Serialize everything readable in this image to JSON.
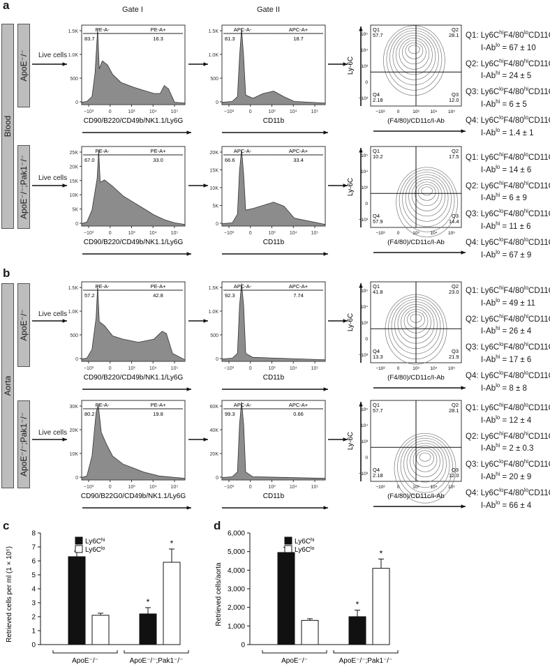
{
  "panels": {
    "a": "a",
    "b": "b",
    "c": "c",
    "d": "d"
  },
  "gates": {
    "gate1": "Gate I",
    "gate2": "Gate II"
  },
  "tissues": {
    "blood": "Blood",
    "aorta": "Aorta"
  },
  "strain_apoe": "ApoE⁻/⁻",
  "strain_dko": "ApoE⁻/⁻;Pak1⁻/⁻",
  "live": "Live cells",
  "axis": {
    "cd90": "CD90/B220/CD49b/NK1.1/Ly6G",
    "cd90_alt": "CD90/B22G0/CD49b/NK1.1/Ly6G",
    "cd11b": "CD11b",
    "f480": "(F4/80)/CD11c/I-Ab",
    "ly6c": "Ly-6C",
    "x_ticks": [
      "−10³",
      "0",
      "10³",
      "10⁴",
      "10⁵"
    ],
    "q_ticks": [
      "10⁵",
      "10⁴",
      "10³",
      "0",
      "−10³"
    ],
    "xt_q": [
      "−10³",
      "0",
      "10³",
      "10⁴",
      "10⁵"
    ]
  },
  "rows": [
    {
      "pe": {
        "neg": "PE-A-",
        "pos": "PE-A+",
        "neg_v": "83.7",
        "pos_v": "16.3",
        "ymax": "1.5K",
        "yt": [
          "1.5K",
          "1.0K",
          "500",
          "0"
        ]
      },
      "apc": {
        "neg": "APC-A-",
        "pos": "APC-A+",
        "neg_v": "81.3",
        "pos_v": "18.7",
        "yt": [
          "1.5K",
          "1.0K",
          "500",
          "0"
        ]
      },
      "q": {
        "q1": "Q1",
        "q1v": "57.7",
        "q2": "Q2",
        "q2v": "28.1",
        "q3": "Q3",
        "q3v": "12.0",
        "q4": "Q4",
        "q4v": "2.18"
      },
      "stats": [
        [
          "Q1: Ly6C",
          "hi",
          "F4/80",
          "lo",
          "CD11C",
          "lo",
          "I-Ab",
          "lo",
          " = 67 ± 10"
        ],
        [
          "Q2: Ly6C",
          "hi",
          "F4/80",
          "hi",
          "CD11C",
          "hi",
          "I-Ab",
          "hi",
          " = 24 ± 5"
        ],
        [
          "Q3: Ly6C",
          "lo",
          "F4/80",
          "hi",
          "CD11C",
          "hi",
          "I-Ab",
          "hi",
          " = 6 ± 5"
        ],
        [
          "Q4: Ly6C",
          "lo",
          "F4/80",
          "lo",
          "CD11C",
          "lo",
          "I-Ab",
          "lo",
          " = 1.4 ± 1"
        ]
      ]
    },
    {
      "pe": {
        "neg": "PE-A-",
        "pos": "PE-A+",
        "neg_v": "67.0",
        "pos_v": "33.0",
        "yt": [
          "25K",
          "20K",
          "15K",
          "10K",
          "5K",
          "0"
        ]
      },
      "apc": {
        "neg": "APC-A-",
        "pos": "APC-A+",
        "neg_v": "66.6",
        "pos_v": "33.4",
        "yt": [
          "20K",
          "15K",
          "10K",
          "5K",
          "0"
        ]
      },
      "q": {
        "q1": "Q1",
        "q1v": "10.2",
        "q2": "Q2",
        "q2v": "17.5",
        "q3": "Q3",
        "q3v": "14.4",
        "q4": "Q4",
        "q4v": "57.9"
      },
      "stats": [
        [
          "Q1: Ly6C",
          "hi",
          "F4/80",
          "lo",
          "CD11C",
          "lo",
          "I-Ab",
          "lo",
          " = 14 ± 6"
        ],
        [
          "Q2: Ly6C",
          "hi",
          "F4/80",
          "hi",
          "CD11C",
          "hi",
          "I-Ab",
          "hi",
          " = 6 ± 9"
        ],
        [
          "Q3: Ly6C",
          "lo",
          "F4/80",
          "hi",
          "CD11C",
          "hi",
          "I-Ab",
          "hi",
          " = 11 ± 6"
        ],
        [
          "Q4: Ly6C",
          "lo",
          "F4/80",
          "lo",
          "CD11C",
          "lo",
          "I-Ab",
          "lo",
          " = 67 ± 9"
        ]
      ]
    },
    {
      "pe": {
        "neg": "PE-A-",
        "pos": "PE-A+",
        "neg_v": "57.2",
        "pos_v": "42.8",
        "yt": [
          "1.5K",
          "1.0K",
          "500",
          "0"
        ]
      },
      "apc": {
        "neg": "APC-A-",
        "pos": "APC-A+",
        "neg_v": "92.3",
        "pos_v": "7.74",
        "yt": [
          "1.5K",
          "1.0K",
          "500",
          "0"
        ]
      },
      "q": {
        "q1": "Q1",
        "q1v": "41.8",
        "q2": "Q2",
        "q2v": "23.0",
        "q3": "Q3",
        "q3v": "21.9",
        "q4": "Q4",
        "q4v": "13.3"
      },
      "stats": [
        [
          "Q1: Ly6C",
          "hi",
          "F4/80",
          "lo",
          "CD11C",
          "lo",
          "I-Ab",
          "lo",
          " = 49 ± 11"
        ],
        [
          "Q2: Ly6C",
          "hi",
          "F4/80",
          "hi",
          "CD11C",
          "hi",
          "I-Ab",
          "hi",
          " = 26 ± 4"
        ],
        [
          "Q3: Ly6C",
          "lo",
          "F4/80",
          "hi",
          "CD11C",
          "hi",
          "I-Ab",
          "hi",
          " = 17 ± 6"
        ],
        [
          "Q4: Ly6C",
          "lo",
          "F4/80",
          "lo",
          "CD11C",
          "lo",
          "I-Ab",
          "lo",
          " = 8 ± 8"
        ]
      ]
    },
    {
      "pe": {
        "neg": "PE-A-",
        "pos": "PE-A+",
        "neg_v": "80.2",
        "pos_v": "19.8",
        "yt": [
          "30K",
          "20K",
          "10K",
          "0"
        ]
      },
      "apc": {
        "neg": "APC-A-",
        "pos": "APC-A+",
        "neg_v": "99.3",
        "pos_v": "0.66",
        "yt": [
          "60K",
          "40K",
          "20K",
          "0"
        ]
      },
      "q": {
        "q1": "Q1",
        "q1v": "57.7",
        "q2": "Q2",
        "q2v": "28.1",
        "q3": "Q3",
        "q3v": "12.0",
        "q4": "Q4",
        "q4v": "2.18"
      },
      "stats": [
        [
          "Q1: Ly6C",
          "hi",
          "F4/80",
          "lo",
          "CD11C",
          "lo",
          "I-Ab",
          "lo",
          " = 12 ± 4"
        ],
        [
          "Q2: Ly6C",
          "hi",
          "F4/80",
          "hi",
          "CD11C",
          "hi",
          "I-Ab",
          "hi",
          " = 2 ± 0.3"
        ],
        [
          "Q3: Ly6C",
          "lo",
          "F4/80",
          "hi",
          "CD11C",
          "hi",
          "I-Ab",
          "hi",
          " = 20 ± 9"
        ],
        [
          "Q4: Ly6C",
          "lo",
          "F4/80",
          "lo",
          "CD11C",
          "lo",
          "I-Ab",
          "lo",
          " = 66 ± 4"
        ]
      ]
    }
  ],
  "chart_data": [
    {
      "type": "bar",
      "panel": "c",
      "ylabel": "Retrieved cells per ml  (1 × 10⁵)",
      "ylim": [
        0,
        8
      ],
      "yticks": [
        0,
        1,
        2,
        3,
        4,
        5,
        6,
        7,
        8
      ],
      "groups": [
        "ApoE⁻/⁻",
        "ApoE⁻/⁻;Pak1⁻/⁻"
      ],
      "series": [
        {
          "name": "Ly6Chi",
          "label_main": "Ly6C",
          "label_sup": "hi",
          "color": "#111111",
          "values": [
            6.3,
            2.2
          ],
          "errors": [
            0.4,
            0.45
          ],
          "sig": [
            false,
            true
          ]
        },
        {
          "name": "Ly6Clo",
          "label_main": "Ly6C",
          "label_sup": "lo",
          "color": "#ffffff",
          "values": [
            2.1,
            5.9
          ],
          "errors": [
            0.15,
            0.95
          ],
          "sig": [
            false,
            true
          ]
        }
      ]
    },
    {
      "type": "bar",
      "panel": "d",
      "ylabel": "Retrieved cells/aorta",
      "ylim": [
        0,
        6000
      ],
      "yticks": [
        0,
        1000,
        2000,
        3000,
        4000,
        5000,
        6000
      ],
      "ytick_labels": [
        "0",
        "1,000",
        "2,000",
        "3,000",
        "4,000",
        "5,000",
        "6,000"
      ],
      "groups": [
        "ApoE⁻/⁻",
        "ApoE⁻/⁻;Pak1⁻/⁻"
      ],
      "series": [
        {
          "name": "Ly6Chi",
          "label_main": "Ly6C",
          "label_sup": "hi",
          "color": "#111111",
          "values": [
            4950,
            1500
          ],
          "errors": [
            280,
            350
          ],
          "sig": [
            false,
            true
          ]
        },
        {
          "name": "Ly6Clo",
          "label_main": "Ly6C",
          "label_sup": "lo",
          "color": "#ffffff",
          "values": [
            1300,
            4100
          ],
          "errors": [
            90,
            500
          ],
          "sig": [
            false,
            true
          ]
        }
      ]
    }
  ],
  "sig_mark": "*"
}
